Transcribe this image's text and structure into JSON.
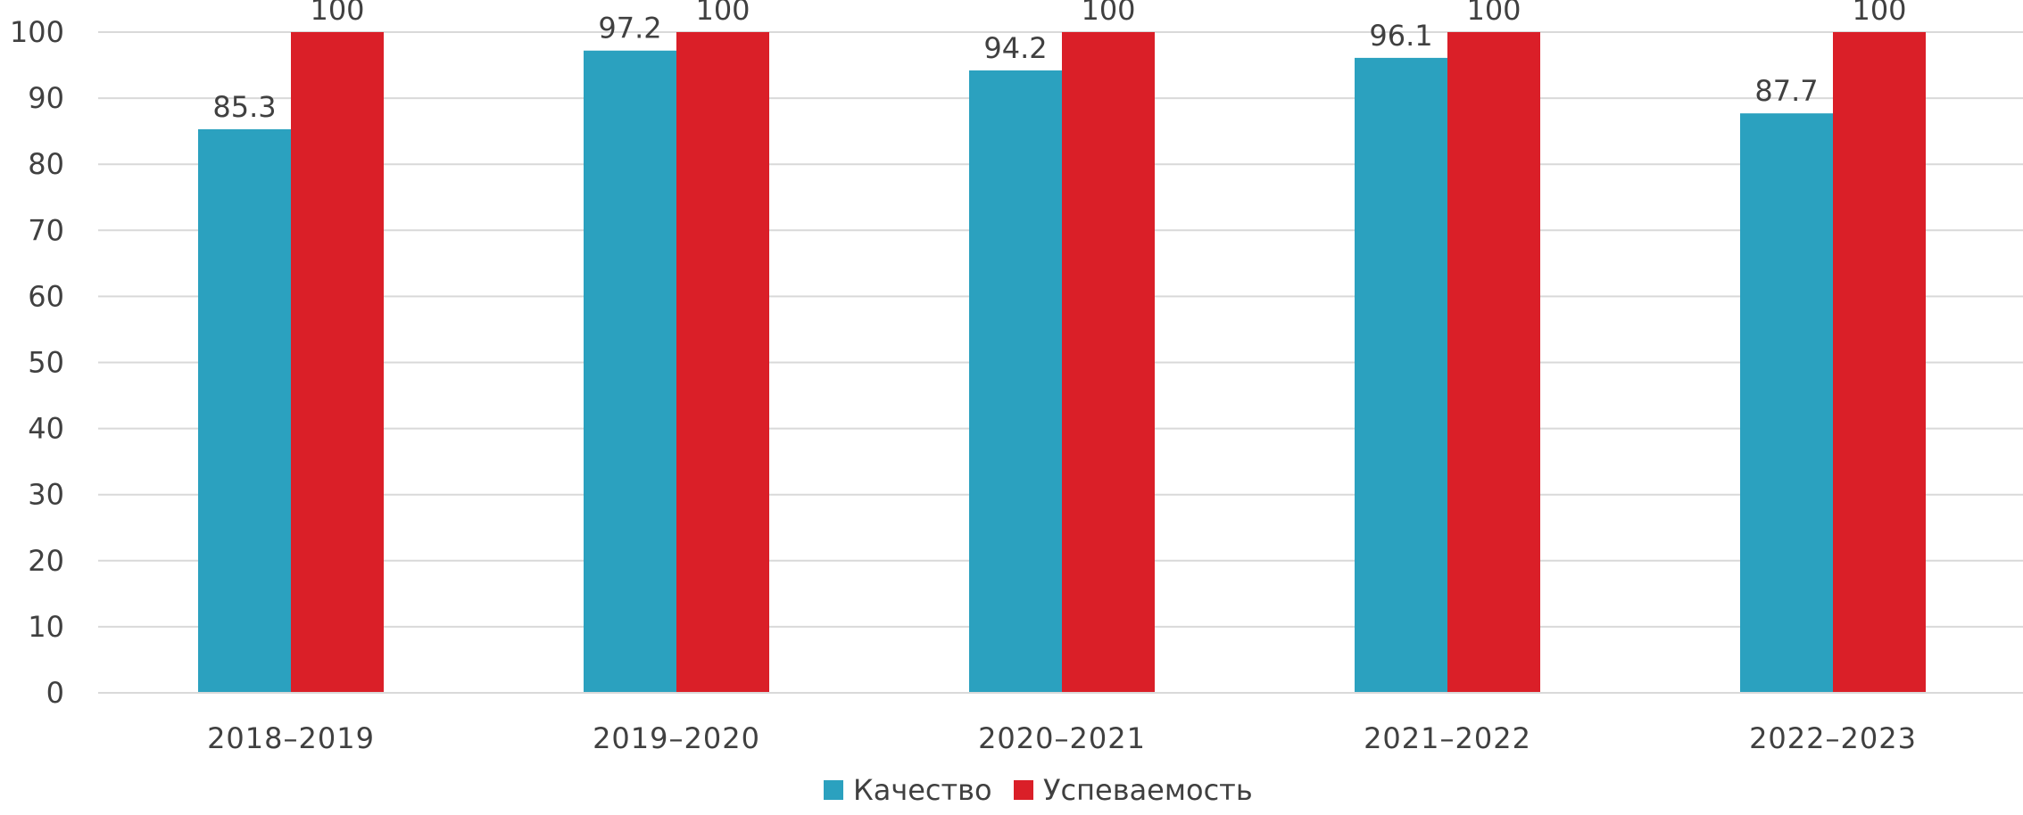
{
  "chart_data": {
    "type": "bar",
    "categories": [
      "2018–2019",
      "2019–2020",
      "2020–2021",
      "2021–2022",
      "2022–2023"
    ],
    "series": [
      {
        "name": "Качество",
        "color": "#2ba1bf",
        "values": [
          85.3,
          97.2,
          94.2,
          96.1,
          87.7
        ],
        "labels": [
          "85.3",
          "97.2",
          "94.2",
          "96.1",
          "87.7"
        ]
      },
      {
        "name": "Успеваемость",
        "color": "#da1f28",
        "values": [
          100,
          100,
          100,
          100,
          100
        ],
        "labels": [
          "100",
          "100",
          "100",
          "100",
          "100"
        ]
      }
    ],
    "ylim": [
      0,
      100
    ],
    "yticks": [
      "0",
      "10",
      "20",
      "30",
      "40",
      "50",
      "60",
      "70",
      "80",
      "90",
      "100"
    ],
    "grid": true,
    "legend_position": "bottom-center",
    "gridline_color": "#d9d9d9",
    "text_color": "#404040"
  }
}
